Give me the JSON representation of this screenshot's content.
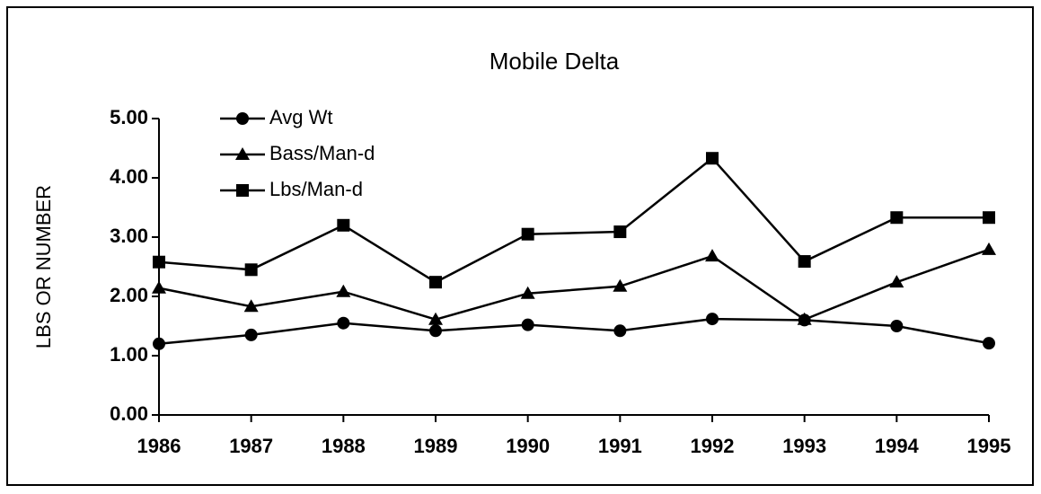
{
  "chart_data": {
    "type": "line",
    "title": "Mobile Delta",
    "y_label": "LBS OR NUMBER",
    "categories": [
      "1986",
      "1987",
      "1988",
      "1989",
      "1990",
      "1991",
      "1992",
      "1993",
      "1994",
      "1995"
    ],
    "series": [
      {
        "name": "Avg Wt",
        "color": "#000000",
        "marker": "circle",
        "values": [
          1.2,
          1.35,
          1.55,
          1.42,
          1.52,
          1.42,
          1.62,
          1.6,
          1.5,
          1.21
        ]
      },
      {
        "name": "Bass/Man-d",
        "color": "#000000",
        "marker": "triangle",
        "values": [
          2.14,
          1.83,
          2.08,
          1.61,
          2.05,
          2.17,
          2.68,
          1.61,
          2.24,
          2.79
        ]
      },
      {
        "name": "Lbs/Man-d",
        "color": "#000000",
        "marker": "square",
        "values": [
          2.58,
          2.45,
          3.2,
          2.24,
          3.05,
          3.09,
          4.33,
          2.59,
          3.33,
          3.33
        ]
      }
    ],
    "ylim": [
      0,
      5
    ],
    "yticks": [
      {
        "value": 0,
        "label": "0.00"
      },
      {
        "value": 1,
        "label": "1.00"
      },
      {
        "value": 2,
        "label": "2.00"
      },
      {
        "value": 3,
        "label": "3.00"
      },
      {
        "value": 4,
        "label": "4.00"
      },
      {
        "value": 5,
        "label": "5.00"
      }
    ],
    "grid": false,
    "legend": "upper left"
  }
}
